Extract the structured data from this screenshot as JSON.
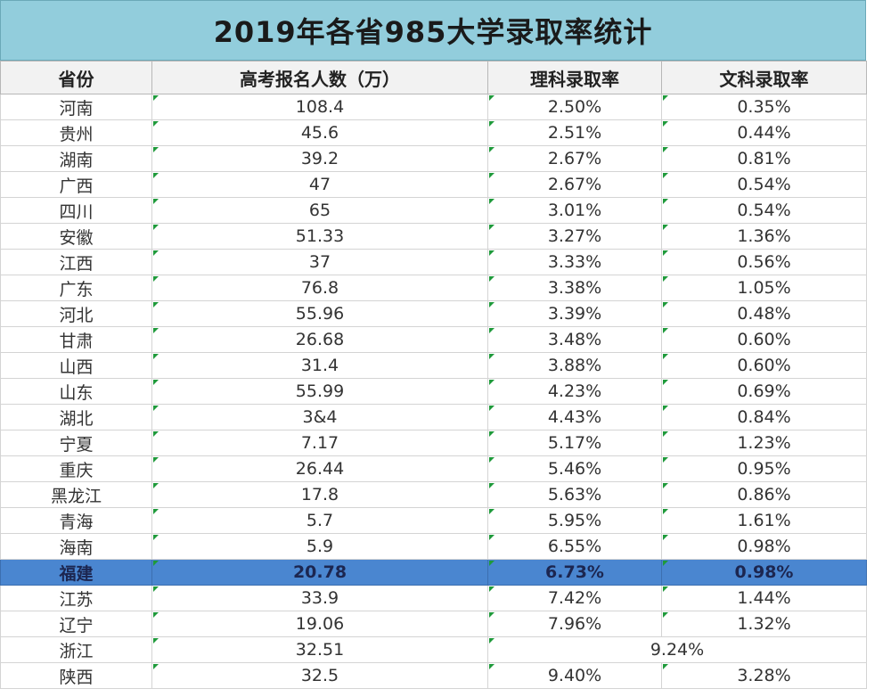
{
  "title": "2019年各省985大学录取率统计",
  "headers": [
    "省份",
    "高考报名人数（万）",
    "理科录取率",
    "文科录取率"
  ],
  "rows": [
    {
      "province": "河南",
      "applicants": "108.4",
      "science": "2.50%",
      "arts": "0.35%"
    },
    {
      "province": "贵州",
      "applicants": "45.6",
      "science": "2.51%",
      "arts": "0.44%"
    },
    {
      "province": "湖南",
      "applicants": "39.2",
      "science": "2.67%",
      "arts": "0.81%"
    },
    {
      "province": "广西",
      "applicants": "47",
      "science": "2.67%",
      "arts": "0.54%"
    },
    {
      "province": "四川",
      "applicants": "65",
      "science": "3.01%",
      "arts": "0.54%"
    },
    {
      "province": "安徽",
      "applicants": "51.33",
      "science": "3.27%",
      "arts": "1.36%"
    },
    {
      "province": "江西",
      "applicants": "37",
      "science": "3.33%",
      "arts": "0.56%"
    },
    {
      "province": "广东",
      "applicants": "76.8",
      "science": "3.38%",
      "arts": "1.05%"
    },
    {
      "province": "河北",
      "applicants": "55.96",
      "science": "3.39%",
      "arts": "0.48%"
    },
    {
      "province": "甘肃",
      "applicants": "26.68",
      "science": "3.48%",
      "arts": "0.60%"
    },
    {
      "province": "山西",
      "applicants": "31.4",
      "science": "3.88%",
      "arts": "0.60%"
    },
    {
      "province": "山东",
      "applicants": "55.99",
      "science": "4.23%",
      "arts": "0.69%"
    },
    {
      "province": "湖北",
      "applicants": "3&4",
      "science": "4.43%",
      "arts": "0.84%"
    },
    {
      "province": "宁夏",
      "applicants": "7.17",
      "science": "5.17%",
      "arts": "1.23%"
    },
    {
      "province": "重庆",
      "applicants": "26.44",
      "science": "5.46%",
      "arts": "0.95%"
    },
    {
      "province": "黑龙江",
      "applicants": "17.8",
      "science": "5.63%",
      "arts": "0.86%"
    },
    {
      "province": "青海",
      "applicants": "5.7",
      "science": "5.95%",
      "arts": "1.61%"
    },
    {
      "province": "海南",
      "applicants": "5.9",
      "science": "6.55%",
      "arts": "0.98%"
    },
    {
      "province": "福建",
      "applicants": "20.78",
      "science": "6.73%",
      "arts": "0.98%",
      "highlight": true
    },
    {
      "province": "江苏",
      "applicants": "33.9",
      "science": "7.42%",
      "arts": "1.44%"
    },
    {
      "province": "辽宁",
      "applicants": "19.06",
      "science": "7.96%",
      "arts": "1.32%"
    },
    {
      "province": "浙江",
      "applicants": "32.51",
      "combined": "9.24%"
    },
    {
      "province": "陕西",
      "applicants": "32.5",
      "science": "9.40%",
      "arts": "3.28%"
    }
  ]
}
